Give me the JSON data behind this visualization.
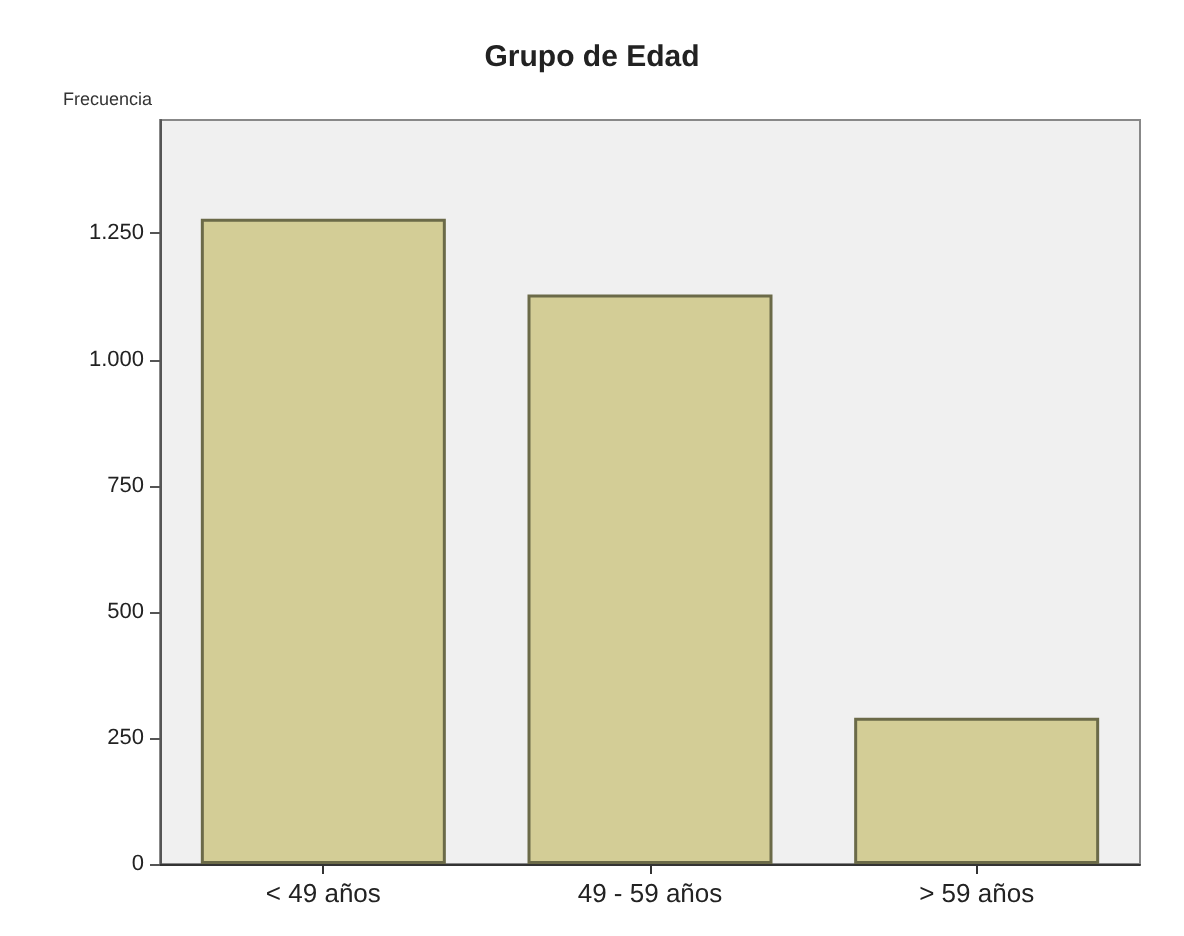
{
  "chart_data": {
    "type": "bar",
    "title": "Grupo de Edad",
    "ylabel": "Frecuencia",
    "categories": [
      "< 49 años",
      "49 - 59 años",
      "> 59 años"
    ],
    "values": [
      1279,
      1129,
      290
    ],
    "color": "#d3cd96",
    "ylim": [
      0,
      1475
    ],
    "yticks": [
      0,
      250,
      500,
      750,
      {
        "value": 1000,
        "label": "1.000"
      },
      {
        "value": 1250,
        "label": "1.250"
      }
    ],
    "grid": false
  }
}
